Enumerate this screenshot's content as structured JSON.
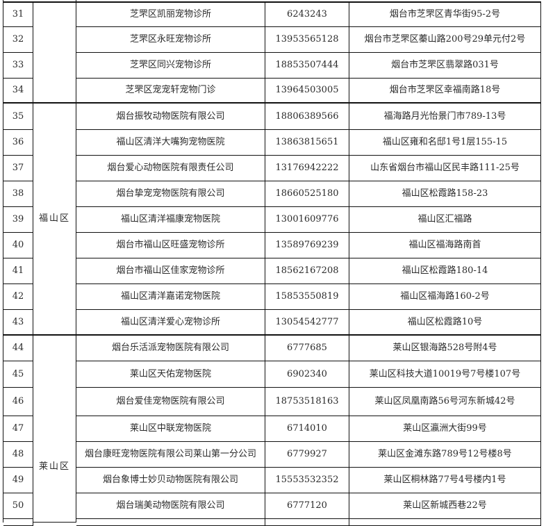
{
  "columns": [
    "index",
    "district",
    "name",
    "phone",
    "address"
  ],
  "rows": [
    {
      "index": "31",
      "name": "芝罘区凯丽宠物诊所",
      "phone": "6243243",
      "address": "烟台市芝罘区青华街95-2号"
    },
    {
      "index": "32",
      "name": "芝罘区永旺宠物诊所",
      "phone": "13953565128",
      "address": "烟台市芝罘区蓁山路200号29单元付2号"
    },
    {
      "index": "33",
      "name": "芝罘区同兴宠物诊所",
      "phone": "18853507444",
      "address": "烟台市芝罘区翡翠路031号"
    },
    {
      "index": "34",
      "name": "芝罘区宠宠轩宠物门诊",
      "phone": "13964503005",
      "address": "烟台市芝罘区幸福南路18号"
    },
    {
      "index": "35",
      "name": "烟台振牧动物医院有限公司",
      "phone": "18806389566",
      "address": "福海路月光怡景门市789-13号"
    },
    {
      "index": "36",
      "name": "福山区清洋大嘴狗宠物医院",
      "phone": "13863815651",
      "address": "福山区雍和名邸1号1层155-15"
    },
    {
      "index": "37",
      "name": "烟台爱心动物医院有限责任公司",
      "phone": "13176942222",
      "address": "山东省烟台市福山区民丰路111-25号"
    },
    {
      "index": "38",
      "name": "烟台挚宠宠物医院有限公司",
      "phone": "18660525180",
      "address": "福山区松霞路158-23"
    },
    {
      "index": "39",
      "name": "福山区清洋福康宠物医院",
      "phone": "13001609776",
      "address": "福山区汇福路"
    },
    {
      "index": "40",
      "name": "烟台市福山区旺盛宠物诊所",
      "phone": "13589769239",
      "address": "福山区福海路南首"
    },
    {
      "index": "41",
      "name": "烟台市福山区佳家宠物诊所",
      "phone": "18562167208",
      "address": "福山区松霞路180-14"
    },
    {
      "index": "42",
      "name": "福山区清洋嘉诺宠物医院",
      "phone": "15853550819",
      "address": "福山区福海路160-2号"
    },
    {
      "index": "43",
      "name": "福山区清洋爱心宠物诊所",
      "phone": "13054542777",
      "address": "福山区松霞路10号"
    },
    {
      "index": "44",
      "name": "烟台乐活派宠物医院有限公司",
      "phone": "6777685",
      "address": "莱山区银海路528号附4号"
    },
    {
      "index": "45",
      "name": "莱山区天佑宠物医院",
      "phone": "6902340",
      "address": "莱山区科技大道10019号7号楼107号"
    },
    {
      "index": "46",
      "name": "烟台爱佳宠物医院有限公司",
      "phone": "18753518163",
      "address": "莱山区凤凰南路56号河东新城42号"
    },
    {
      "index": "47",
      "name": "莱山区中联宠物医院",
      "phone": "6714010",
      "address": "莱山区瀛洲大街99号"
    },
    {
      "index": "48",
      "name": "烟台康旺宠物医院有限公司莱山第一分公司",
      "phone": "6779927",
      "address": "莱山区金滩东路789号12号楼8号"
    },
    {
      "index": "49",
      "name": "烟台象博士妙贝动物医院有限公司",
      "phone": "15553532352",
      "address": "莱山区桐林路77号4号楼内1号"
    },
    {
      "index": "50",
      "name": "烟台瑞美动物医院有限公司",
      "phone": "6777120",
      "address": "莱山区新城西巷22号"
    }
  ],
  "districts": [
    {
      "label": "",
      "from": 0,
      "to": 3
    },
    {
      "label": "福山区",
      "from": 4,
      "to": 12
    },
    {
      "label": "莱山区",
      "from": 13,
      "to": 20
    }
  ]
}
